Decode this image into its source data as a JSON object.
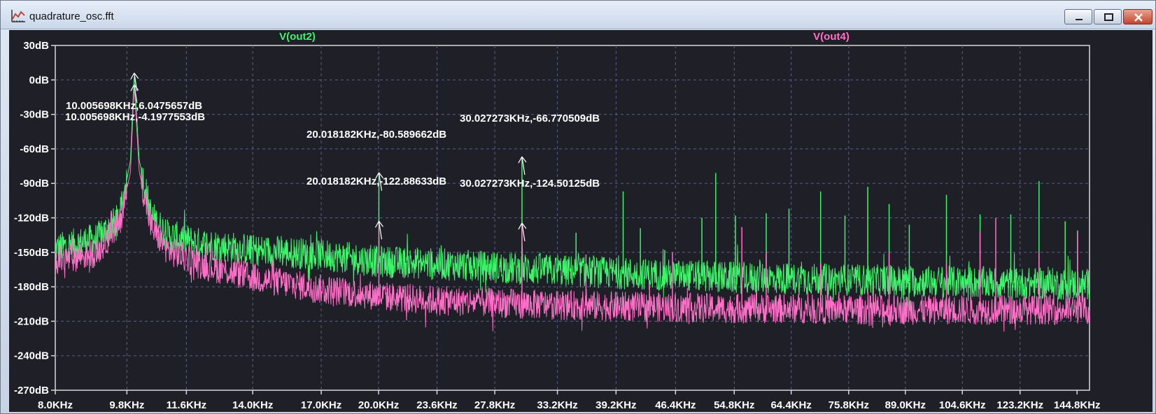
{
  "window": {
    "title": "quadrature_osc.fft",
    "icon": "waveform-plot-icon",
    "controls": [
      "minimize-icon",
      "maximize-icon",
      "close-icon"
    ]
  },
  "colors": {
    "background": "#1f1f28",
    "grid": "#5a5f8a",
    "out2": "#3df56b",
    "out4": "#ff6fc8",
    "text": "#ffffff"
  },
  "chart_data": {
    "type": "line",
    "title": "",
    "xlabel": "",
    "ylabel": "",
    "x_scale": "log",
    "x_unit": "Hz",
    "xlim": [
      8000,
      150000
    ],
    "ylim": [
      -270,
      30
    ],
    "grid": true,
    "x_tick_labels": [
      "8.0KHz",
      "9.8KHz",
      "11.6KHz",
      "14.0KHz",
      "17.0KHz",
      "20.0KHz",
      "23.6KHz",
      "27.8KHz",
      "33.2KHz",
      "39.2KHz",
      "46.4KHz",
      "54.8KHz",
      "64.4KHz",
      "75.8KHz",
      "89.0KHz",
      "104.6KHz",
      "123.2KHz",
      "144.8KHz"
    ],
    "x_tick_values": [
      8000,
      9800,
      11600,
      14000,
      17000,
      20000,
      23600,
      27800,
      33200,
      39200,
      46400,
      54800,
      64400,
      75800,
      89000,
      104600,
      123200,
      144800
    ],
    "y_tick_labels": [
      "30dB",
      "0dB",
      "-30dB",
      "-60dB",
      "-90dB",
      "-120dB",
      "-150dB",
      "-180dB",
      "-210dB",
      "-240dB",
      "-270dB"
    ],
    "y_tick_values": [
      30,
      0,
      -30,
      -60,
      -90,
      -120,
      -150,
      -180,
      -210,
      -240,
      -270
    ],
    "series": [
      {
        "name": "V(out2)",
        "color": "#3df56b",
        "envelope": [
          [
            8000,
            -147
          ],
          [
            9000,
            -138
          ],
          [
            9600,
            -120
          ],
          [
            9900,
            -70
          ],
          [
            10005.698,
            6.05
          ],
          [
            10150,
            -70
          ],
          [
            10500,
            -118
          ],
          [
            11000,
            -135
          ],
          [
            12000,
            -142
          ],
          [
            14000,
            -148
          ],
          [
            17000,
            -152
          ],
          [
            20000,
            -158
          ],
          [
            23600,
            -160
          ],
          [
            27800,
            -163
          ],
          [
            33200,
            -166
          ],
          [
            39200,
            -168
          ],
          [
            46400,
            -170
          ],
          [
            54800,
            -172
          ],
          [
            64400,
            -173
          ],
          [
            75800,
            -174
          ],
          [
            89000,
            -175
          ],
          [
            104600,
            -176
          ],
          [
            123200,
            -177
          ],
          [
            150000,
            -178
          ]
        ],
        "peaks": [
          [
            10005.698,
            6.0475657
          ],
          [
            20018.182,
            -80.589662
          ],
          [
            30027.273,
            -66.770509
          ],
          [
            35000,
            -133
          ],
          [
            40000,
            -97
          ],
          [
            42000,
            -129
          ],
          [
            45000,
            -148
          ],
          [
            50000,
            -120
          ],
          [
            52000,
            -81
          ],
          [
            55000,
            -118
          ],
          [
            60000,
            -116
          ],
          [
            64000,
            -112
          ],
          [
            70000,
            -97
          ],
          [
            75000,
            -118
          ],
          [
            80000,
            -93
          ],
          [
            85000,
            -108
          ],
          [
            90000,
            -126
          ],
          [
            100000,
            -100
          ],
          [
            110000,
            -117
          ],
          [
            120000,
            -117
          ],
          [
            130000,
            -88
          ],
          [
            140000,
            -123
          ],
          [
            145000,
            -131
          ]
        ]
      },
      {
        "name": "V(out4)",
        "color": "#ff6fc8",
        "envelope": [
          [
            8000,
            -158
          ],
          [
            9000,
            -150
          ],
          [
            9600,
            -125
          ],
          [
            9900,
            -80
          ],
          [
            10005.698,
            -4.2
          ],
          [
            10150,
            -80
          ],
          [
            10500,
            -128
          ],
          [
            11000,
            -148
          ],
          [
            12000,
            -160
          ],
          [
            14000,
            -172
          ],
          [
            17000,
            -182
          ],
          [
            20000,
            -188
          ],
          [
            23600,
            -192
          ],
          [
            27800,
            -194
          ],
          [
            33200,
            -196
          ],
          [
            39200,
            -197
          ],
          [
            46400,
            -198
          ],
          [
            54800,
            -199
          ],
          [
            64400,
            -199
          ],
          [
            75800,
            -200
          ],
          [
            89000,
            -200
          ],
          [
            104600,
            -200
          ],
          [
            123200,
            -200
          ],
          [
            150000,
            -200
          ]
        ],
        "peaks": [
          [
            10005.698,
            -4.1977553
          ],
          [
            20018.182,
            -122.88633
          ],
          [
            30027.273,
            -124.50125
          ],
          [
            36000,
            -152
          ],
          [
            46000,
            -150
          ],
          [
            56000,
            -128
          ],
          [
            60000,
            -150
          ],
          [
            70000,
            -160
          ],
          [
            85000,
            -150
          ],
          [
            100000,
            -160
          ],
          [
            110000,
            -132
          ],
          [
            115000,
            -120
          ],
          [
            130000,
            -150
          ],
          [
            145000,
            -133
          ]
        ]
      }
    ],
    "annotations": [
      {
        "text": "10.005698KHz,6.0475657dB",
        "x": 10005.698,
        "y": 6.0475657,
        "series": "V(out2)"
      },
      {
        "text": "10.005698KHz,-4.1977553dB",
        "x": 10005.698,
        "y": -4.1977553,
        "series": "V(out4)"
      },
      {
        "text": "20.018182KHz,-80.589662dB",
        "x": 20018.182,
        "y": -80.589662,
        "series": "V(out2)"
      },
      {
        "text": "20.018182KHz,-122.88633dB",
        "x": 20018.182,
        "y": -122.88633,
        "series": "V(out4)"
      },
      {
        "text": "30.027273KHz,-66.770509dB",
        "x": 30027.273,
        "y": -66.770509,
        "series": "V(out2)"
      },
      {
        "text": "30.027273KHz,-124.50125dB",
        "x": 30027.273,
        "y": -124.50125,
        "series": "V(out4)"
      }
    ]
  }
}
